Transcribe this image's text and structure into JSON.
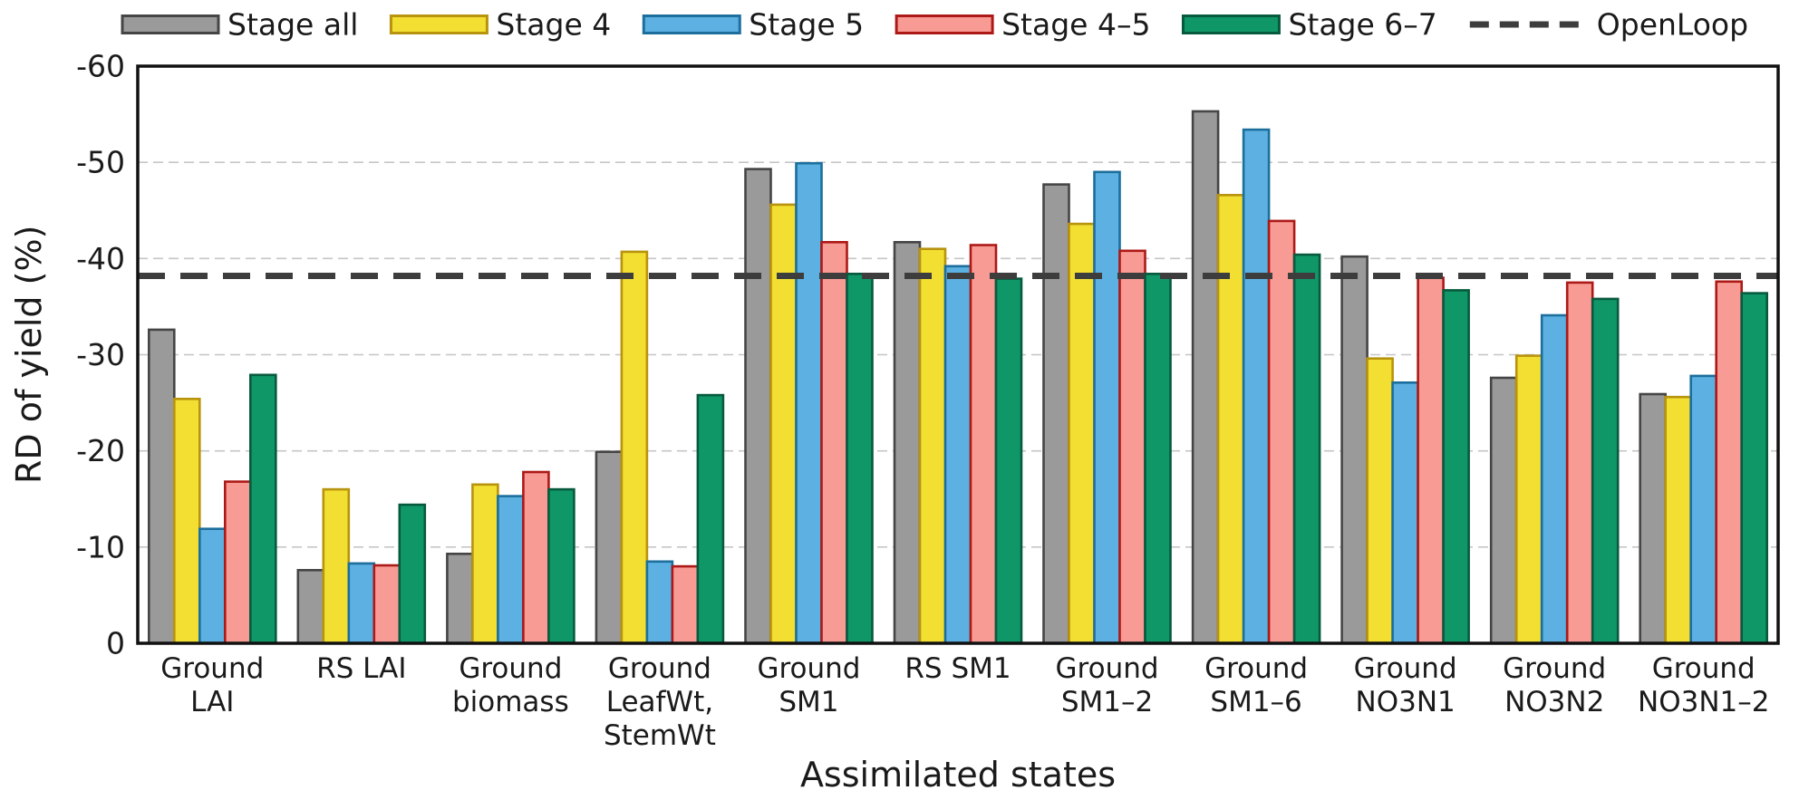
{
  "chart_data": {
    "type": "bar",
    "title": "",
    "xlabel": "Assimilated states",
    "ylabel": "RD of yield (%)",
    "ylim": [
      0,
      -60
    ],
    "y_axis_inverted": true,
    "yticks": [
      0,
      -10,
      -20,
      -30,
      -40,
      -50,
      -60
    ],
    "grid": "horizontal-dashed",
    "legend_position": "top",
    "categories": [
      {
        "label": "Ground LAI",
        "lines": [
          "Ground",
          "LAI"
        ]
      },
      {
        "label": "RS LAI",
        "lines": [
          "RS LAI"
        ]
      },
      {
        "label": "Ground biomass",
        "lines": [
          "Ground",
          "biomass"
        ]
      },
      {
        "label": "Ground LeafWt, StemWt",
        "lines": [
          "Ground",
          "LeafWt,",
          "StemWt"
        ]
      },
      {
        "label": "Ground SM1",
        "lines": [
          "Ground",
          "SM1"
        ]
      },
      {
        "label": "RS SM1",
        "lines": [
          "RS SM1"
        ]
      },
      {
        "label": "Ground SM1–2",
        "lines": [
          "Ground",
          "SM1–2"
        ]
      },
      {
        "label": "Ground SM1–6",
        "lines": [
          "Ground",
          "SM1–6"
        ]
      },
      {
        "label": "Ground NO3N1",
        "lines": [
          "Ground",
          "NO3N1"
        ]
      },
      {
        "label": "Ground NO3N2",
        "lines": [
          "Ground",
          "NO3N2"
        ]
      },
      {
        "label": "Ground NO3N1–2",
        "lines": [
          "Ground",
          "NO3N1–2"
        ]
      }
    ],
    "series": [
      {
        "name": "Stage all",
        "fill": "#9a9a9a",
        "stroke": "#454545",
        "values": [
          -32.6,
          -7.6,
          -9.3,
          -19.9,
          -49.3,
          -41.7,
          -47.7,
          -55.3,
          -40.2,
          -27.6,
          -25.9
        ]
      },
      {
        "name": "Stage 4",
        "fill": "#f2df32",
        "stroke": "#b8930d",
        "values": [
          -25.4,
          -16.0,
          -16.5,
          -40.7,
          -45.6,
          -41.0,
          -43.6,
          -46.6,
          -29.6,
          -29.9,
          -25.6
        ]
      },
      {
        "name": "Stage 5",
        "fill": "#5cb1e2",
        "stroke": "#1c6e9c",
        "values": [
          -11.9,
          -8.3,
          -15.3,
          -8.5,
          -49.9,
          -39.2,
          -49.0,
          -53.4,
          -27.1,
          -34.1,
          -27.8
        ]
      },
      {
        "name": "Stage 4–5",
        "fill": "#f99b95",
        "stroke": "#ac1917",
        "values": [
          -16.8,
          -8.1,
          -17.8,
          -8.0,
          -41.7,
          -41.4,
          -40.8,
          -43.9,
          -38.0,
          -37.5,
          -37.6
        ]
      },
      {
        "name": "Stage 6–7",
        "fill": "#0f9768",
        "stroke": "#075a3e",
        "values": [
          -27.9,
          -14.4,
          -16.0,
          -25.8,
          -38.4,
          -37.9,
          -38.4,
          -40.4,
          -36.7,
          -35.8,
          -36.4
        ]
      }
    ],
    "reference_line": {
      "name": "OpenLoop",
      "value": -38.2,
      "style": "dashed",
      "color": "#3d3d3d"
    },
    "colors": {
      "gridline": "#c6c6c6",
      "frame": "#111111",
      "text": "#1a1a1a"
    }
  }
}
